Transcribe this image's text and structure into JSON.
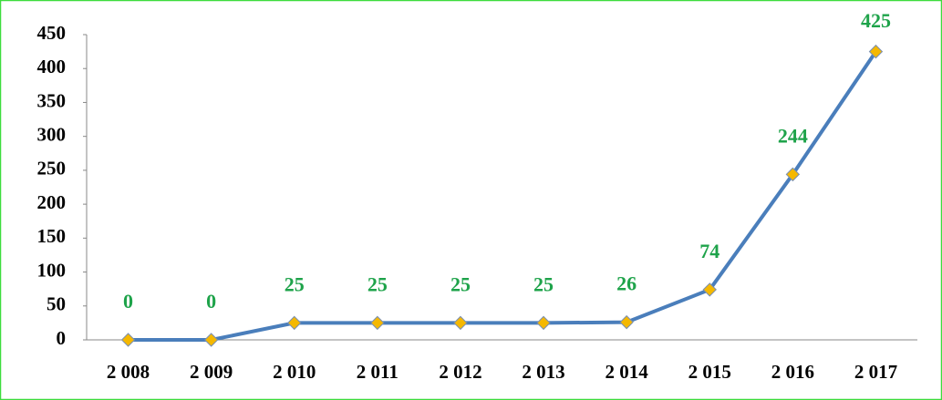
{
  "chart_data": {
    "type": "line",
    "categories": [
      "2 008",
      "2 009",
      "2 010",
      "2 011",
      "2 012",
      "2 013",
      "2 014",
      "2 015",
      "2 016",
      "2 017"
    ],
    "series": [
      {
        "color": "#4a7ebb",
        "marker_color": "#f5b800",
        "values": [
          0,
          0,
          25,
          25,
          25,
          25,
          26,
          74,
          244,
          425
        ]
      }
    ],
    "ylim": [
      0,
      450
    ],
    "yticks": [
      0,
      50,
      100,
      150,
      200,
      250,
      300,
      350,
      400,
      450
    ],
    "grid": false
  }
}
